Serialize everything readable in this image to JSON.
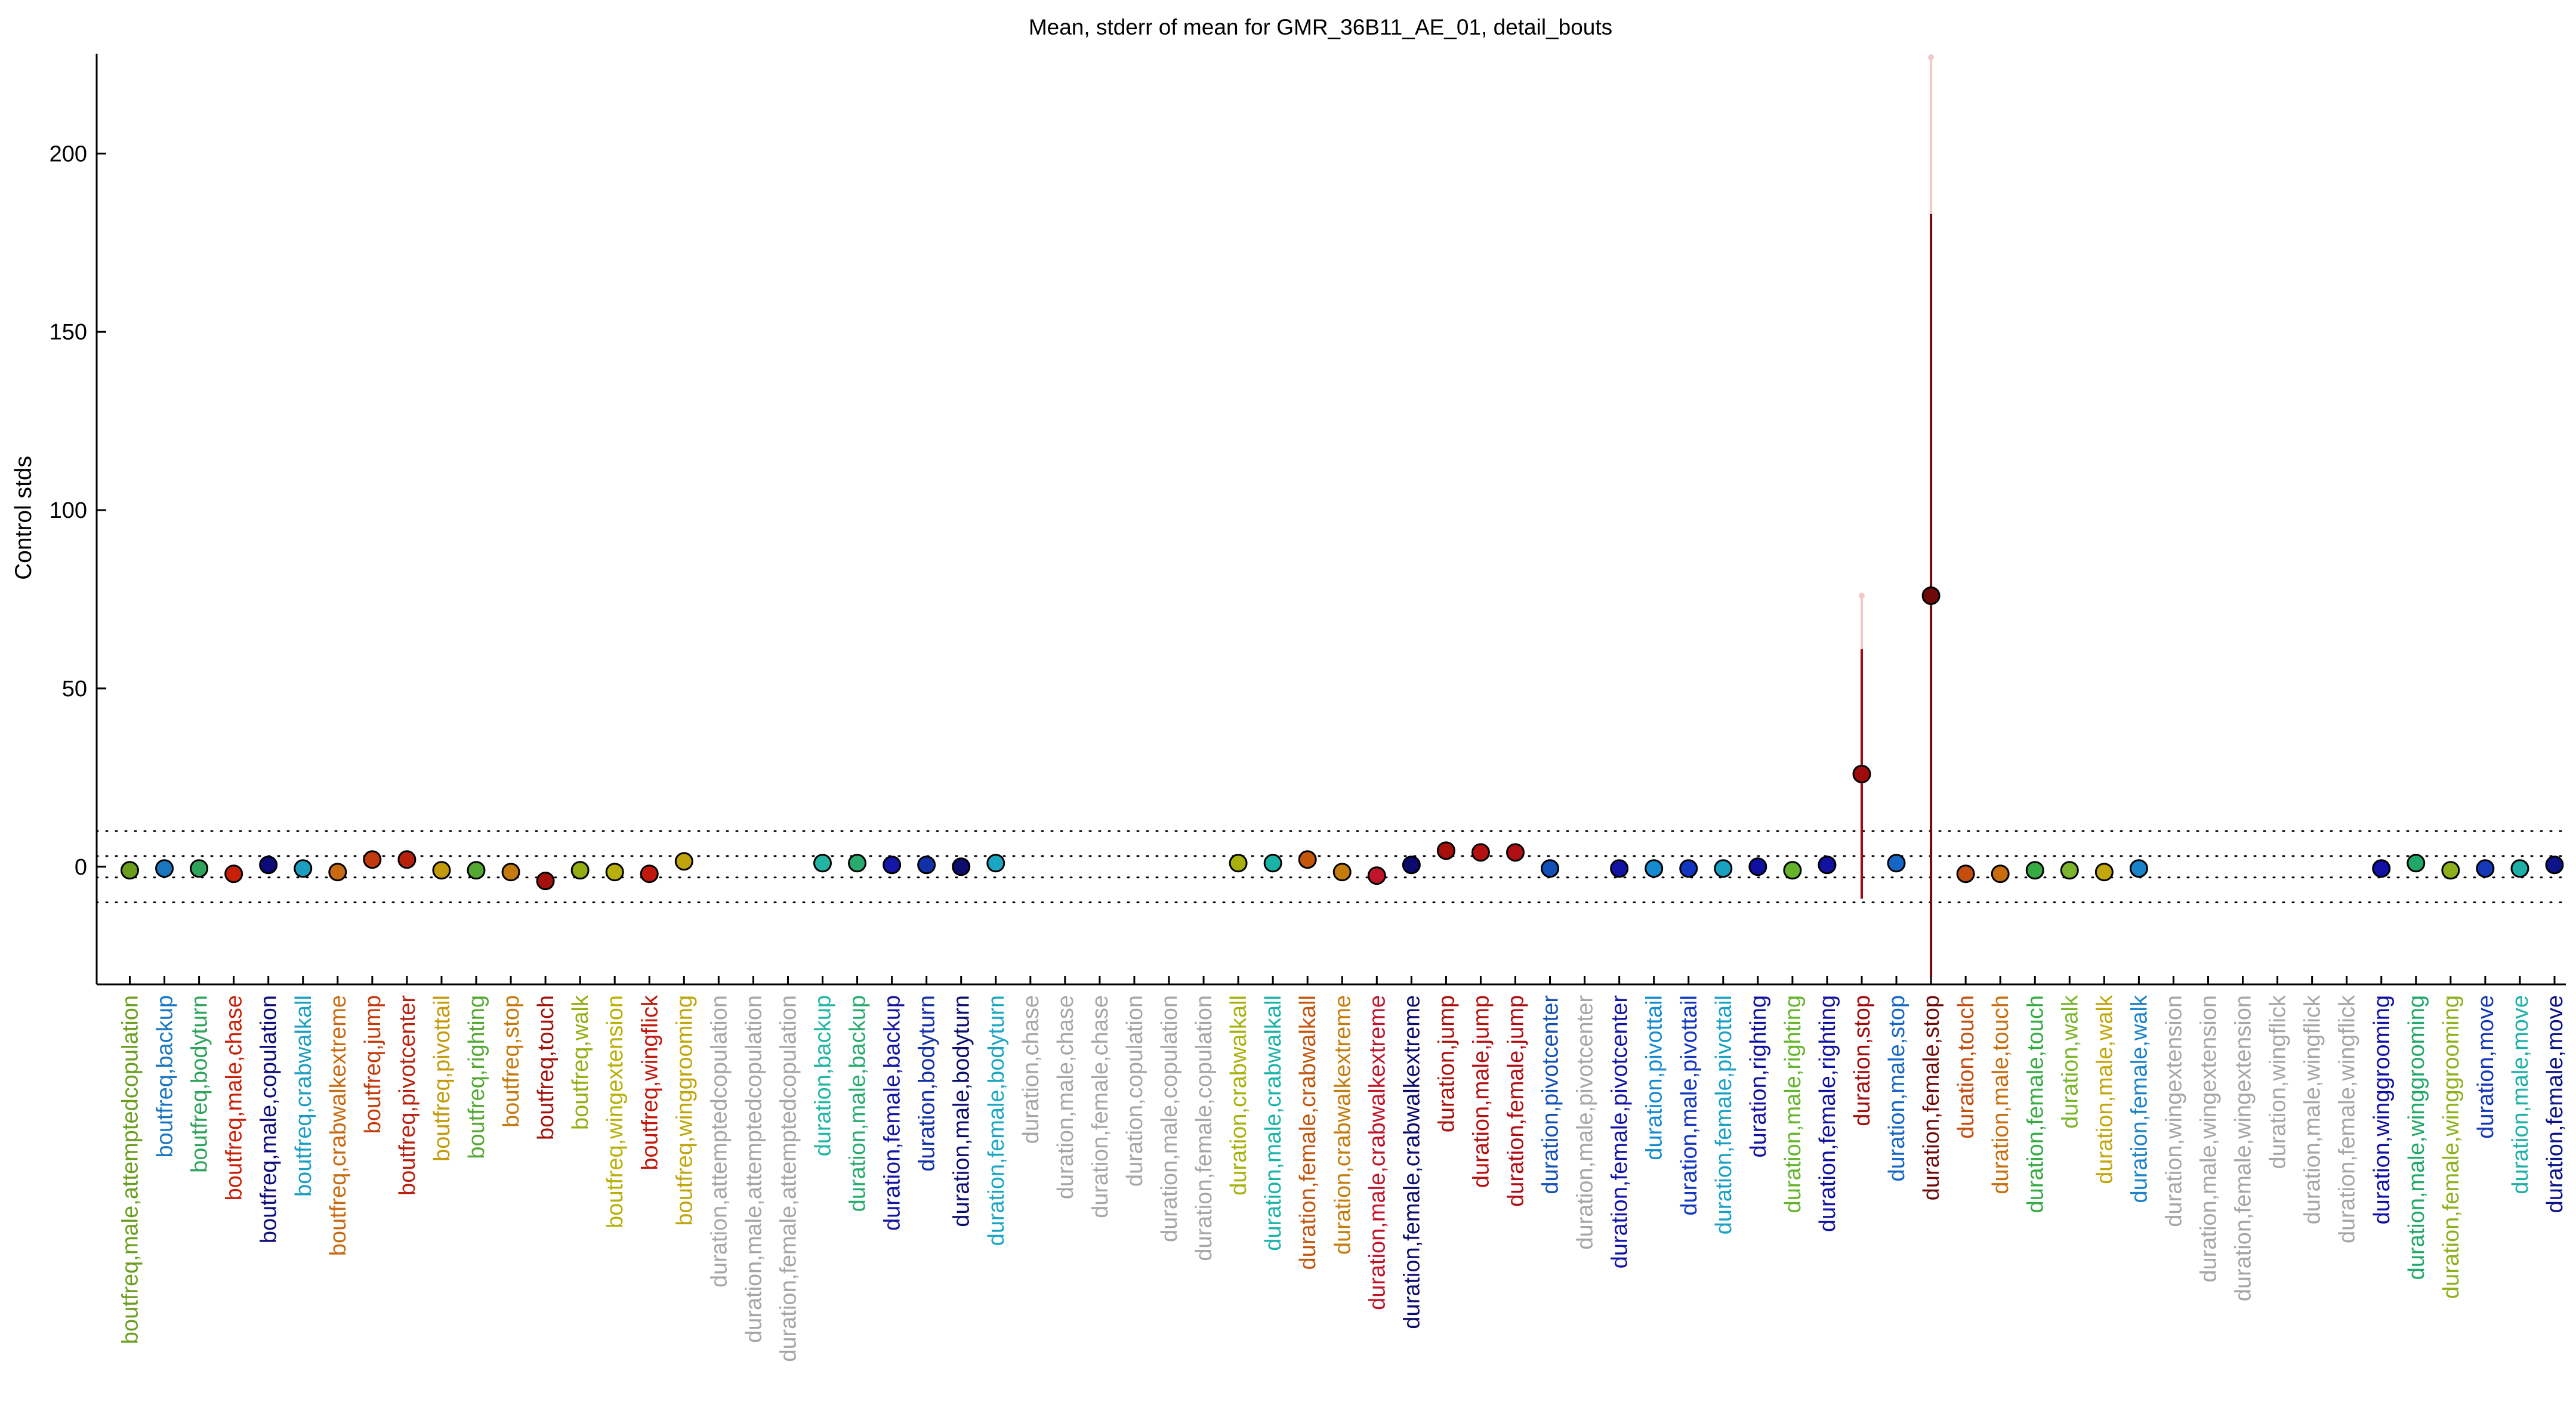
{
  "chart_data": {
    "type": "scatter",
    "title": "Mean, stderr of mean for GMR_36B11_AE_01, detail_bouts",
    "ylabel": "Control stds",
    "xlabel": "",
    "ylim": [
      -33,
      228
    ],
    "yticks": [
      0,
      50,
      100,
      150,
      200
    ],
    "grid": false,
    "legend": "none",
    "reference_lines": [
      -10,
      -3,
      3,
      10
    ],
    "points": [
      {
        "label": "boutfreq,male,attemptedcopulation",
        "mean": -1,
        "sem": 1,
        "color": "#6b9e1f",
        "fill": "#6b9e1f"
      },
      {
        "label": "boutfreq,backup",
        "mean": -0.5,
        "sem": 1,
        "color": "#1a76c0",
        "fill": "#1a76c0"
      },
      {
        "label": "boutfreq,bodyturn",
        "mean": -0.5,
        "sem": 1,
        "color": "#2fa35b",
        "fill": "#2fa35b"
      },
      {
        "label": "boutfreq,male,chase",
        "mean": -2,
        "sem": 1,
        "color": "#c82008",
        "fill": "#c82008"
      },
      {
        "label": "boutfreq,male,copulation",
        "mean": 0.5,
        "sem": 1,
        "color": "#0b0b7a",
        "fill": "#0b0b7a"
      },
      {
        "label": "boutfreq,crabwalkall",
        "mean": -0.5,
        "sem": 1,
        "color": "#1c9ec0",
        "fill": "#1c9ec0"
      },
      {
        "label": "boutfreq,crabwalkextreme",
        "mean": -1.5,
        "sem": 1,
        "color": "#c86a12",
        "fill": "#c86a12"
      },
      {
        "label": "boutfreq,jump",
        "mean": 2,
        "sem": 1,
        "color": "#c23b0c",
        "fill": "#c23b0c"
      },
      {
        "label": "boutfreq,pivotcenter",
        "mean": 2,
        "sem": 1,
        "color": "#b8200e",
        "fill": "#b8200e"
      },
      {
        "label": "boutfreq,pivottail",
        "mean": -1,
        "sem": 1,
        "color": "#c39a0a",
        "fill": "#c39a0a"
      },
      {
        "label": "boutfreq,righting",
        "mean": -1,
        "sem": 1,
        "color": "#54a832",
        "fill": "#54a832"
      },
      {
        "label": "boutfreq,stop",
        "mean": -1.5,
        "sem": 1,
        "color": "#c47a0e",
        "fill": "#c47a0e"
      },
      {
        "label": "boutfreq,touch",
        "mean": -4,
        "sem": 1,
        "color": "#a3110b",
        "fill": "#a3110b"
      },
      {
        "label": "boutfreq,walk",
        "mean": -1,
        "sem": 1,
        "color": "#94ad13",
        "fill": "#94ad13"
      },
      {
        "label": "boutfreq,wingextension",
        "mean": -1.5,
        "sem": 1,
        "color": "#b8b00a",
        "fill": "#b8b00a"
      },
      {
        "label": "boutfreq,wingflick",
        "mean": -2,
        "sem": 1,
        "color": "#c0180c",
        "fill": "#c0180c"
      },
      {
        "label": "boutfreq,winggrooming",
        "mean": 1.5,
        "sem": 1,
        "color": "#bfa50a",
        "fill": "#bfa50a"
      },
      {
        "label": "duration,attemptedcopulation",
        "mean": null,
        "sem": null,
        "color": "#a6a6a6",
        "fill": "#a6a6a6"
      },
      {
        "label": "duration,male,attemptedcopulation",
        "mean": null,
        "sem": null,
        "color": "#a6a6a6",
        "fill": "#a6a6a6"
      },
      {
        "label": "duration,female,attemptedcopulation",
        "mean": null,
        "sem": null,
        "color": "#a6a6a6",
        "fill": "#a6a6a6"
      },
      {
        "label": "duration,backup",
        "mean": 1,
        "sem": 1,
        "color": "#22b5a3",
        "fill": "#22b5a3"
      },
      {
        "label": "duration,male,backup",
        "mean": 1,
        "sem": 1,
        "color": "#27ab6e",
        "fill": "#27ab6e"
      },
      {
        "label": "duration,female,backup",
        "mean": 0.5,
        "sem": 1,
        "color": "#1515a6",
        "fill": "#1515a6"
      },
      {
        "label": "duration,bodyturn",
        "mean": 0.5,
        "sem": 1,
        "color": "#1230a8",
        "fill": "#1230a8"
      },
      {
        "label": "duration,male,bodyturn",
        "mean": 0,
        "sem": 1,
        "color": "#0c0c6e",
        "fill": "#0c0c6e"
      },
      {
        "label": "duration,female,bodyturn",
        "mean": 1,
        "sem": 1,
        "color": "#1aa6c2",
        "fill": "#1aa6c2"
      },
      {
        "label": "duration,chase",
        "mean": null,
        "sem": null,
        "color": "#a6a6a6",
        "fill": "#a6a6a6"
      },
      {
        "label": "duration,male,chase",
        "mean": null,
        "sem": null,
        "color": "#a6a6a6",
        "fill": "#a6a6a6"
      },
      {
        "label": "duration,female,chase",
        "mean": null,
        "sem": null,
        "color": "#a6a6a6",
        "fill": "#a6a6a6"
      },
      {
        "label": "duration,copulation",
        "mean": null,
        "sem": null,
        "color": "#a6a6a6",
        "fill": "#a6a6a6"
      },
      {
        "label": "duration,male,copulation",
        "mean": null,
        "sem": null,
        "color": "#a6a6a6",
        "fill": "#a6a6a6"
      },
      {
        "label": "duration,female,copulation",
        "mean": null,
        "sem": null,
        "color": "#a6a6a6",
        "fill": "#a6a6a6"
      },
      {
        "label": "duration,crabwalkall",
        "mean": 1,
        "sem": 1,
        "color": "#a8b10c",
        "fill": "#a8b10c"
      },
      {
        "label": "duration,male,crabwalkall",
        "mean": 1,
        "sem": 1,
        "color": "#19b3a8",
        "fill": "#19b3a8"
      },
      {
        "label": "duration,female,crabwalkall",
        "mean": 2,
        "sem": 1,
        "color": "#c2560d",
        "fill": "#c2560d"
      },
      {
        "label": "duration,crabwalkextreme",
        "mean": -1.5,
        "sem": 1,
        "color": "#c47c0c",
        "fill": "#c47c0c"
      },
      {
        "label": "duration,male,crabwalkextreme",
        "mean": -2.5,
        "sem": 1,
        "color": "#c0142a",
        "fill": "#c0142a"
      },
      {
        "label": "duration,female,crabwalkextreme",
        "mean": 0.5,
        "sem": 1,
        "color": "#0b0b6e",
        "fill": "#0b0b6e"
      },
      {
        "label": "duration,jump",
        "mean": 4.5,
        "sem": 1,
        "color": "#a8100a",
        "fill": "#a8100a"
      },
      {
        "label": "duration,male,jump",
        "mean": 4,
        "sem": 1,
        "color": "#b41212",
        "fill": "#b41212"
      },
      {
        "label": "duration,female,jump",
        "mean": 4,
        "sem": 1,
        "color": "#b00d14",
        "fill": "#b00d14"
      },
      {
        "label": "duration,pivotcenter",
        "mean": -0.5,
        "sem": 1,
        "color": "#1250b8",
        "fill": "#1250b8"
      },
      {
        "label": "duration,male,pivotcenter",
        "mean": null,
        "sem": null,
        "color": "#a6a6a6",
        "fill": "#a6a6a6"
      },
      {
        "label": "duration,female,pivotcenter",
        "mean": -0.5,
        "sem": 1,
        "color": "#1212a6",
        "fill": "#1212a6"
      },
      {
        "label": "duration,pivottail",
        "mean": -0.5,
        "sem": 1,
        "color": "#168ad0",
        "fill": "#168ad0"
      },
      {
        "label": "duration,male,pivottail",
        "mean": -0.5,
        "sem": 1,
        "color": "#1236c0",
        "fill": "#1236c0"
      },
      {
        "label": "duration,female,pivottail",
        "mean": -0.5,
        "sem": 1,
        "color": "#18a1c3",
        "fill": "#18a1c3"
      },
      {
        "label": "duration,righting",
        "mean": 0,
        "sem": 1,
        "color": "#1010a0",
        "fill": "#1010a0"
      },
      {
        "label": "duration,male,righting",
        "mean": -1,
        "sem": 1,
        "color": "#65b42c",
        "fill": "#65b42c"
      },
      {
        "label": "duration,female,righting",
        "mean": 0.5,
        "sem": 1,
        "color": "#1212a0",
        "fill": "#1212a0"
      },
      {
        "label": "duration,stop",
        "mean": 26,
        "sem": 35,
        "color": "#a00c0c",
        "fill": "#a00c0c",
        "ci_upper": 76,
        "ci_lower": -9
      },
      {
        "label": "duration,male,stop",
        "mean": 1,
        "sem": 1,
        "color": "#1666c6",
        "fill": "#1666c6"
      },
      {
        "label": "duration,female,stop",
        "mean": 76,
        "sem": 107,
        "color": "#6e0a0a",
        "fill": "#6e0a0a",
        "ci_upper": 227,
        "ci_lower": -31
      },
      {
        "label": "duration,touch",
        "mean": -2,
        "sem": 1,
        "color": "#c44e10",
        "fill": "#c44e10"
      },
      {
        "label": "duration,male,touch",
        "mean": -2,
        "sem": 1,
        "color": "#c76d0e",
        "fill": "#c76d0e"
      },
      {
        "label": "duration,female,touch",
        "mean": -1,
        "sem": 1,
        "color": "#37ab43",
        "fill": "#37ab43"
      },
      {
        "label": "duration,walk",
        "mean": -1,
        "sem": 1,
        "color": "#7ab52b",
        "fill": "#7ab52b"
      },
      {
        "label": "duration,male,walk",
        "mean": -1.5,
        "sem": 1,
        "color": "#c1a60c",
        "fill": "#c1a60c"
      },
      {
        "label": "duration,female,walk",
        "mean": -0.5,
        "sem": 1,
        "color": "#1a82c8",
        "fill": "#1a82c8"
      },
      {
        "label": "duration,wingextension",
        "mean": null,
        "sem": null,
        "color": "#a6a6a6",
        "fill": "#a6a6a6"
      },
      {
        "label": "duration,male,wingextension",
        "mean": null,
        "sem": null,
        "color": "#a6a6a6",
        "fill": "#a6a6a6"
      },
      {
        "label": "duration,female,wingextension",
        "mean": null,
        "sem": null,
        "color": "#a6a6a6",
        "fill": "#a6a6a6"
      },
      {
        "label": "duration,wingflick",
        "mean": null,
        "sem": null,
        "color": "#a6a6a6",
        "fill": "#a6a6a6"
      },
      {
        "label": "duration,male,wingflick",
        "mean": null,
        "sem": null,
        "color": "#a6a6a6",
        "fill": "#a6a6a6"
      },
      {
        "label": "duration,female,wingflick",
        "mean": null,
        "sem": null,
        "color": "#a6a6a6",
        "fill": "#a6a6a6"
      },
      {
        "label": "duration,winggrooming",
        "mean": -0.5,
        "sem": 1,
        "color": "#1010a6",
        "fill": "#1010a6"
      },
      {
        "label": "duration,male,winggrooming",
        "mean": 1,
        "sem": 1,
        "color": "#1fa867",
        "fill": "#1fa867"
      },
      {
        "label": "duration,female,winggrooming",
        "mean": -1,
        "sem": 1,
        "color": "#8eb01c",
        "fill": "#8eb01c"
      },
      {
        "label": "duration,move",
        "mean": -0.5,
        "sem": 1,
        "color": "#1438b8",
        "fill": "#1438b8"
      },
      {
        "label": "duration,male,move",
        "mean": -0.5,
        "sem": 1,
        "color": "#1cb0a6",
        "fill": "#1cb0a6"
      },
      {
        "label": "duration,female,move",
        "mean": 0.5,
        "sem": 1,
        "color": "#0c1488",
        "fill": "#0c1488"
      }
    ]
  }
}
